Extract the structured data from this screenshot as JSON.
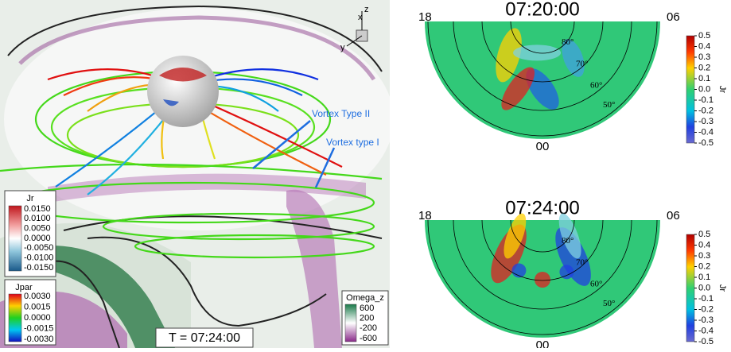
{
  "left_panel": {
    "axis_labels": {
      "x": "x",
      "y": "y",
      "z": "z"
    },
    "annotations": [
      "Vortex Type II",
      "Vortex type I"
    ],
    "time_label": "T = 07:24:00",
    "legend_jr": {
      "title": "Jr",
      "ticks": [
        "0.0150",
        "0.0100",
        "0.0050",
        "0.0000",
        "-0.0050",
        "-0.0100",
        "-0.0150"
      ]
    },
    "legend_jpar": {
      "title": "Jpar",
      "ticks": [
        "0.0030",
        "0.0015",
        "0.0000",
        "-0.0015",
        "-0.0030"
      ]
    },
    "legend_omega": {
      "title": "Omega_z",
      "ticks": [
        "600",
        "200",
        "-200",
        "-600"
      ]
    }
  },
  "polar_plots": [
    {
      "title": "07:20:00",
      "left_label": "18",
      "right_label": "06",
      "bottom_label": "00",
      "rings": [
        "80°",
        "70°",
        "60°",
        "50°"
      ],
      "colorbar": {
        "title": "Jr",
        "ticks": [
          "0.5",
          "0.4",
          "0.3",
          "0.2",
          "0.1",
          "0.0",
          "-0.1",
          "-0.2",
          "-0.3",
          "-0.4",
          "-0.5"
        ]
      }
    },
    {
      "title": "07:24:00",
      "left_label": "18",
      "right_label": "06",
      "bottom_label": "00",
      "rings": [
        "80°",
        "70°",
        "60°",
        "50°"
      ],
      "colorbar": {
        "title": "Jr",
        "ticks": [
          "0.5",
          "0.4",
          "0.3",
          "0.2",
          "0.1",
          "0.0",
          "-0.1",
          "-0.2",
          "-0.3",
          "-0.4",
          "-0.5"
        ]
      }
    }
  ]
}
